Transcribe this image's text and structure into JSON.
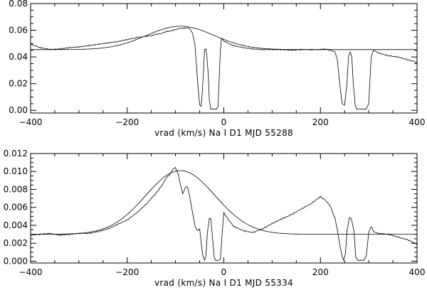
{
  "chart_data": [
    {
      "type": "line",
      "xlabel": "vrad (km/s)   Na I D1   MJD 55288",
      "xlim": [
        -400,
        400
      ],
      "ylim": [
        -0.002,
        0.08
      ],
      "xticks": [
        -400,
        -200,
        0,
        200,
        400
      ],
      "xtick_labels": [
        "−400",
        "−200",
        "0",
        "200",
        "400"
      ],
      "yticks": [
        0.0,
        0.02,
        0.04,
        0.06,
        0.08
      ],
      "ytick_labels": [
        "0.00",
        "0.02",
        "0.04",
        "0.06",
        "0.08"
      ],
      "series": [
        {
          "kind": "observed",
          "x": [
            -400,
            -380,
            -360,
            -340,
            -320,
            -300,
            -280,
            -260,
            -240,
            -220,
            -200,
            -180,
            -160,
            -150,
            -140,
            -130,
            -120,
            -110,
            -100,
            -90,
            -80,
            -75,
            -70,
            -65,
            -60,
            -58,
            -55,
            -52,
            -50,
            -47,
            -45,
            -42,
            -40,
            -37,
            -35,
            -32,
            -30,
            -27,
            -25,
            -22,
            -20,
            -17,
            -15,
            -12,
            -10,
            -7,
            -5,
            0,
            10,
            20,
            40,
            60,
            80,
            100,
            120,
            140,
            160,
            180,
            200,
            210,
            220,
            230,
            235,
            240,
            245,
            250,
            255,
            258,
            262,
            265,
            268,
            272,
            275,
            280,
            285,
            290,
            295,
            300,
            305,
            310,
            320,
            340,
            360,
            380,
            400
          ],
          "y": [
            0.0495,
            0.047,
            0.0455,
            0.046,
            0.047,
            0.0475,
            0.0485,
            0.0495,
            0.0505,
            0.0515,
            0.053,
            0.0545,
            0.0555,
            0.056,
            0.057,
            0.0575,
            0.059,
            0.0595,
            0.0605,
            0.0615,
            0.0615,
            0.062,
            0.061,
            0.058,
            0.05,
            0.04,
            0.025,
            0.012,
            0.004,
            0.003,
            0.012,
            0.03,
            0.045,
            0.046,
            0.04,
            0.025,
            0.008,
            0.001,
            0.001,
            0.001,
            0.001,
            0.001,
            0.001,
            0.003,
            0.02,
            0.045,
            0.054,
            0.052,
            0.05,
            0.0485,
            0.047,
            0.046,
            0.0455,
            0.0455,
            0.0455,
            0.045,
            0.0455,
            0.0455,
            0.0455,
            0.046,
            0.045,
            0.044,
            0.038,
            0.02,
            0.005,
            0.004,
            0.02,
            0.04,
            0.044,
            0.04,
            0.02,
            0.004,
            0.001,
            0.001,
            0.001,
            0.001,
            0.001,
            0.005,
            0.04,
            0.045,
            0.043,
            0.041,
            0.04,
            0.038,
            0.036
          ]
        },
        {
          "kind": "model",
          "continuum": 0.0455,
          "peak_x": -90,
          "amplitude": 0.0175,
          "sigma": 70
        }
      ]
    },
    {
      "type": "line",
      "xlabel": "vrad (km/s)   Na I D1   MJD 55334",
      "xlim": [
        -400,
        400
      ],
      "ylim": [
        -0.0002,
        0.012
      ],
      "xticks": [
        -400,
        -200,
        0,
        200,
        400
      ],
      "xtick_labels": [
        "−400",
        "−200",
        "0",
        "200",
        "400"
      ],
      "yticks": [
        0.0,
        0.002,
        0.004,
        0.006,
        0.008,
        0.01,
        0.012
      ],
      "ytick_labels": [
        "0.000",
        "0.002",
        "0.004",
        "0.006",
        "0.008",
        "0.010",
        "0.012"
      ],
      "series": [
        {
          "kind": "observed",
          "x": [
            -400,
            -380,
            -360,
            -340,
            -320,
            -300,
            -280,
            -260,
            -240,
            -220,
            -200,
            -180,
            -160,
            -140,
            -130,
            -120,
            -110,
            -105,
            -100,
            -95,
            -90,
            -85,
            -80,
            -75,
            -70,
            -65,
            -60,
            -55,
            -50,
            -47,
            -44,
            -40,
            -37,
            -34,
            -30,
            -27,
            -24,
            -20,
            -17,
            -14,
            -10,
            -7,
            -4,
            0,
            10,
            20,
            40,
            60,
            80,
            100,
            120,
            140,
            160,
            180,
            190,
            200,
            210,
            215,
            220,
            225,
            230,
            235,
            240,
            245,
            248,
            252,
            255,
            260,
            265,
            270,
            273,
            277,
            280,
            285,
            290,
            295,
            300,
            305,
            310,
            320,
            340,
            360,
            380,
            400
          ],
          "y": [
            0.0029,
            0.003,
            0.0031,
            0.0029,
            0.003,
            0.0031,
            0.0031,
            0.0033,
            0.0036,
            0.0041,
            0.0046,
            0.0054,
            0.0064,
            0.0076,
            0.0083,
            0.0092,
            0.0098,
            0.0103,
            0.0104,
            0.0098,
            0.0086,
            0.0075,
            0.0082,
            0.0083,
            0.007,
            0.0055,
            0.004,
            0.0034,
            0.0036,
            0.002,
            0.0008,
            0.0001,
            0.0006,
            0.0032,
            0.0048,
            0.0048,
            0.003,
            0.0005,
            0.0001,
            0.0001,
            0.0001,
            0.0002,
            0.0027,
            0.0054,
            0.0046,
            0.0039,
            0.0034,
            0.0032,
            0.0036,
            0.0042,
            0.0047,
            0.0052,
            0.0058,
            0.0064,
            0.0068,
            0.0072,
            0.0068,
            0.0065,
            0.0062,
            0.0055,
            0.0048,
            0.0035,
            0.0018,
            0.0005,
            0.0001,
            0.0009,
            0.0034,
            0.0049,
            0.0046,
            0.003,
            0.0005,
            0.0001,
            0.0001,
            0.0001,
            0.0001,
            0.0006,
            0.0032,
            0.0039,
            0.0033,
            0.0031,
            0.003,
            0.0027,
            0.0024,
            0.0019
          ]
        },
        {
          "kind": "model",
          "continuum": 0.003,
          "peak_x": -90,
          "amplitude": 0.0071,
          "sigma": 72
        }
      ]
    }
  ]
}
